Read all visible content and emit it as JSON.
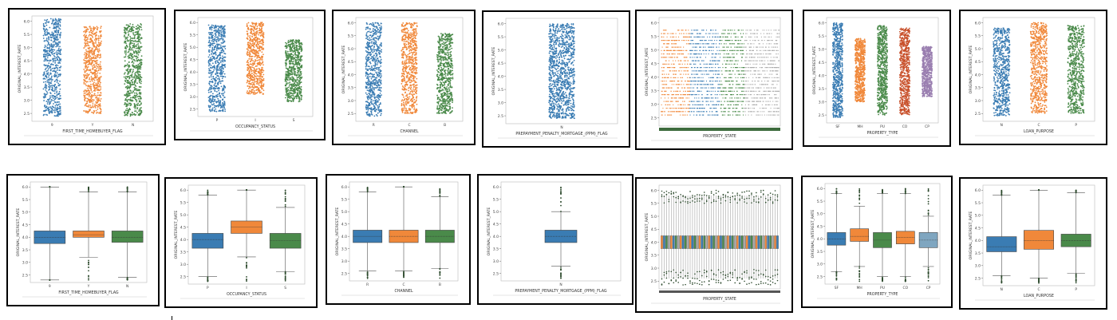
{
  "chart_data": [
    {
      "type": "scatter",
      "subtype": "strip",
      "row": "top",
      "xlabel": "FIRST_TIME_HOMEBUYER_FLAG",
      "ylabel": "ORIGINAL_INTEREST_RATE",
      "categories": [
        "9",
        "Y",
        "N"
      ],
      "ylim": [
        2.2,
        6.2
      ],
      "yticks": [
        2.5,
        3.0,
        3.5,
        4.0,
        4.5,
        5.0,
        5.5,
        6.0
      ],
      "colors": [
        "#3a7cb3",
        "#f0883a",
        "#4a8a4a"
      ],
      "ranges": [
        [
          2.4,
          6.1
        ],
        [
          2.5,
          5.8
        ],
        [
          2.4,
          5.9
        ]
      ]
    },
    {
      "type": "scatter",
      "subtype": "strip",
      "row": "top",
      "xlabel": "OCCUPANCY_STATUS",
      "ylabel": "ORIGINAL_INTEREST_RATE",
      "categories": [
        "P",
        "I",
        "S"
      ],
      "ylim": [
        2.2,
        6.2
      ],
      "yticks": [
        2.5,
        3.0,
        3.5,
        4.0,
        4.5,
        5.0,
        5.5,
        6.0
      ],
      "colors": [
        "#3a7cb3",
        "#f0883a",
        "#4a8a4a"
      ],
      "ranges": [
        [
          2.4,
          5.9
        ],
        [
          3.1,
          6.0
        ],
        [
          2.8,
          5.3
        ]
      ]
    },
    {
      "type": "scatter",
      "subtype": "strip",
      "row": "top",
      "xlabel": "CHANNEL",
      "ylabel": "ORIGINAL_INTEREST_RATE",
      "categories": [
        "R",
        "C",
        "B"
      ],
      "ylim": [
        2.2,
        6.2
      ],
      "yticks": [
        2.5,
        3.0,
        3.5,
        4.0,
        4.5,
        5.0,
        5.5,
        6.0
      ],
      "colors": [
        "#3a7cb3",
        "#f0883a",
        "#4a8a4a"
      ],
      "ranges": [
        [
          2.4,
          6.0
        ],
        [
          2.5,
          6.0
        ],
        [
          2.5,
          5.6
        ]
      ]
    },
    {
      "type": "scatter",
      "subtype": "strip",
      "row": "top",
      "xlabel": "PREPAYMENT_PENALTY_MORTGAGE_(PPM)_FLAG",
      "ylabel": "ORIGINAL_INTEREST_RATE",
      "categories": [
        "N"
      ],
      "ylim": [
        2.2,
        6.2
      ],
      "yticks": [
        2.5,
        3.0,
        3.5,
        4.0,
        4.5,
        5.0,
        5.5,
        6.0
      ],
      "colors": [
        "#3a7cb3"
      ],
      "ranges": [
        [
          2.4,
          6.0
        ]
      ]
    },
    {
      "type": "scatter",
      "subtype": "strip",
      "row": "top",
      "xlabel": "PROPERTY_STATE",
      "ylabel": "ORIGINAL_INTEREST_RATE",
      "categories": [],
      "ylim": [
        2.2,
        6.2
      ],
      "yticks": [
        2.5,
        3.0,
        3.5,
        4.0,
        4.5,
        5.0,
        5.5,
        6.0
      ],
      "colors": [
        "#f0883a",
        "#3a7cb3",
        "#4a8a4a",
        "#aaaaaa"
      ],
      "ranges": [
        [
          2.6,
          5.8
        ]
      ]
    },
    {
      "type": "scatter",
      "subtype": "strip",
      "row": "top",
      "xlabel": "PROPERTY_TYPE",
      "ylabel": "ORIGINAL_INTEREST_RATE",
      "categories": [
        "SF",
        "MH",
        "PU",
        "CO",
        "CP"
      ],
      "ylim": [
        2.2,
        6.2
      ],
      "yticks": [
        2.5,
        3.0,
        3.5,
        4.0,
        4.5,
        5.0,
        5.5,
        6.0
      ],
      "colors": [
        "#3a7cb3",
        "#f0883a",
        "#4a8a4a",
        "#c8502a",
        "#9a7fb0"
      ],
      "ranges": [
        [
          2.4,
          6.0
        ],
        [
          3.0,
          5.4
        ],
        [
          2.5,
          5.9
        ],
        [
          2.5,
          5.8
        ],
        [
          3.2,
          5.1
        ]
      ]
    },
    {
      "type": "scatter",
      "subtype": "strip",
      "row": "top",
      "xlabel": "LOAN_PURPOSE",
      "ylabel": "ORIGINAL_INTEREST_RATE",
      "categories": [
        "N",
        "C",
        "P"
      ],
      "ylim": [
        2.2,
        6.2
      ],
      "yticks": [
        2.5,
        3.0,
        3.5,
        4.0,
        4.5,
        5.0,
        5.5,
        6.0
      ],
      "colors": [
        "#3a7cb3",
        "#f0883a",
        "#4a8a4a"
      ],
      "ranges": [
        [
          2.4,
          5.8
        ],
        [
          2.5,
          6.0
        ],
        [
          2.5,
          5.9
        ]
      ]
    },
    {
      "type": "box",
      "row": "bottom",
      "xlabel": "FIRST_TIME_HOMEBUYER_FLAG",
      "ylabel": "ORIGINAL_INTEREST_RATE",
      "categories": [
        "9",
        "Y",
        "N"
      ],
      "ylim": [
        2.2,
        6.2
      ],
      "yticks": [
        2.5,
        3.0,
        3.5,
        4.0,
        4.5,
        5.0,
        5.5,
        6.0
      ],
      "colors": [
        "#3a7cb3",
        "#f0883a",
        "#4a8a4a"
      ],
      "boxes": [
        {
          "min": 2.3,
          "q1": 3.75,
          "median": 4.0,
          "q3": 4.25,
          "max": 6.0
        },
        {
          "min": 3.2,
          "q1": 4.0,
          "median": 4.1,
          "q3": 4.25,
          "max": 5.8
        },
        {
          "min": 2.4,
          "q1": 3.8,
          "median": 4.0,
          "q3": 4.25,
          "max": 5.8
        }
      ]
    },
    {
      "type": "box",
      "row": "bottom",
      "xlabel": "OCCUPANCY_STATUS",
      "ylabel": "ORIGINAL_INTEREST_RATE",
      "categories": [
        "P",
        "I",
        "S"
      ],
      "ylim": [
        2.2,
        6.2
      ],
      "yticks": [
        2.5,
        3.0,
        3.5,
        4.0,
        4.5,
        5.0,
        5.5,
        6.0
      ],
      "colors": [
        "#3a7cb3",
        "#f0883a",
        "#4a8a4a"
      ],
      "boxes": [
        {
          "min": 2.5,
          "q1": 3.65,
          "median": 4.0,
          "q3": 4.25,
          "max": 5.8
        },
        {
          "min": 3.3,
          "q1": 4.25,
          "median": 4.5,
          "q3": 4.75,
          "max": 6.0
        },
        {
          "min": 2.7,
          "q1": 3.65,
          "median": 3.95,
          "q3": 4.25,
          "max": 5.3
        }
      ]
    },
    {
      "type": "box",
      "row": "bottom",
      "xlabel": "CHANNEL",
      "ylabel": "ORIGINAL_INTEREST_RATE",
      "categories": [
        "R",
        "C",
        "B"
      ],
      "ylim": [
        2.2,
        6.2
      ],
      "yticks": [
        2.5,
        3.0,
        3.5,
        4.0,
        4.5,
        5.0,
        5.5,
        6.0
      ],
      "colors": [
        "#3a7cb3",
        "#f0883a",
        "#4a8a4a"
      ],
      "boxes": [
        {
          "min": 2.6,
          "q1": 3.75,
          "median": 4.0,
          "q3": 4.25,
          "max": 5.8
        },
        {
          "min": 2.6,
          "q1": 3.75,
          "median": 4.0,
          "q3": 4.25,
          "max": 6.0
        },
        {
          "min": 2.7,
          "q1": 3.75,
          "median": 4.0,
          "q3": 4.25,
          "max": 5.6
        }
      ]
    },
    {
      "type": "box",
      "row": "bottom",
      "xlabel": "PREPAYMENT_PENALTY_MORTGAGE_(PPM)_FLAG",
      "ylabel": "ORIGINAL_INTEREST_RATE",
      "categories": [
        "N"
      ],
      "ylim": [
        2.2,
        6.2
      ],
      "yticks": [
        2.5,
        3.0,
        3.5,
        4.0,
        4.5,
        5.0,
        5.5,
        6.0
      ],
      "colors": [
        "#3a7cb3"
      ],
      "boxes": [
        {
          "min": 2.8,
          "q1": 3.75,
          "median": 4.0,
          "q3": 4.25,
          "max": 5.0
        }
      ]
    },
    {
      "type": "box",
      "row": "bottom",
      "xlabel": "PROPERTY_STATE",
      "ylabel": "ORIGINAL_INTEREST_RATE",
      "categories": [],
      "ylim": [
        2.2,
        6.2
      ],
      "yticks": [
        2.5,
        3.0,
        3.5,
        4.0,
        4.5,
        5.0,
        5.5,
        6.0
      ],
      "colors": [
        "#f0883a",
        "#3a7cb3",
        "#4a8a4a",
        "#aaaaaa"
      ],
      "boxes": [
        {
          "min": 2.6,
          "q1": 3.75,
          "median": 4.0,
          "q3": 4.25,
          "max": 5.8
        }
      ]
    },
    {
      "type": "box",
      "row": "bottom",
      "xlabel": "PROPERTY_TYPE",
      "ylabel": "ORIGINAL_INTEREST_RATE",
      "categories": [
        "SF",
        "MH",
        "PU",
        "CO",
        "CP"
      ],
      "ylim": [
        2.2,
        6.2
      ],
      "yticks": [
        2.5,
        3.0,
        3.5,
        4.0,
        4.5,
        5.0,
        5.5,
        6.0
      ],
      "colors": [
        "#3a7cb3",
        "#f0883a",
        "#4a8a4a",
        "#f0883a",
        "#7fa6c0"
      ],
      "boxes": [
        {
          "min": 2.7,
          "q1": 3.75,
          "median": 4.0,
          "q3": 4.25,
          "max": 5.8
        },
        {
          "min": 2.9,
          "q1": 3.9,
          "median": 4.1,
          "q3": 4.4,
          "max": 5.3
        },
        {
          "min": 2.5,
          "q1": 3.65,
          "median": 3.95,
          "q3": 4.25,
          "max": 5.8
        },
        {
          "min": 2.5,
          "q1": 3.8,
          "median": 4.05,
          "q3": 4.3,
          "max": 5.8
        },
        {
          "min": 2.9,
          "q1": 3.65,
          "median": 3.95,
          "q3": 4.25,
          "max": 4.9
        }
      ]
    },
    {
      "type": "box",
      "row": "bottom",
      "xlabel": "LOAN_PURPOSE",
      "ylabel": "ORIGINAL_INTEREST_RATE",
      "categories": [
        "N",
        "C",
        "P"
      ],
      "ylim": [
        2.2,
        6.2
      ],
      "yticks": [
        2.5,
        3.0,
        3.5,
        4.0,
        4.5,
        5.0,
        5.5,
        6.0
      ],
      "colors": [
        "#3a7cb3",
        "#f0883a",
        "#4a8a4a"
      ],
      "boxes": [
        {
          "min": 2.6,
          "q1": 3.55,
          "median": 3.75,
          "q3": 4.15,
          "max": 5.8
        },
        {
          "min": 2.5,
          "q1": 3.65,
          "median": 4.0,
          "q3": 4.4,
          "max": 6.0
        },
        {
          "min": 2.7,
          "q1": 3.75,
          "median": 4.0,
          "q3": 4.25,
          "max": 5.9
        }
      ]
    }
  ]
}
